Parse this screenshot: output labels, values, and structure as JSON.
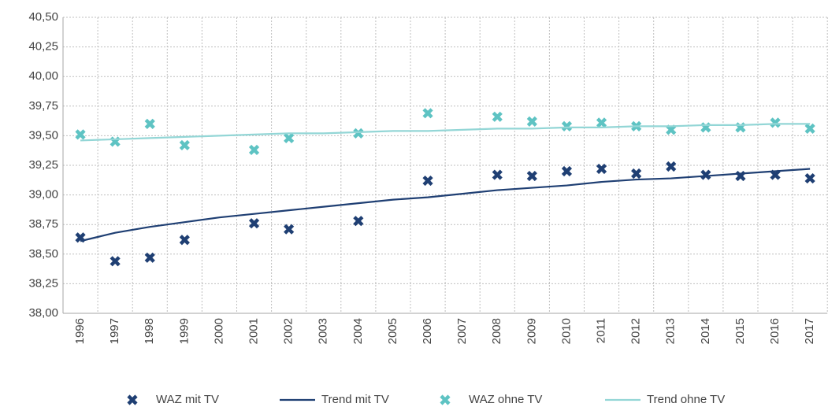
{
  "chart_data": {
    "type": "line",
    "categories": [
      "1996",
      "1997",
      "1998",
      "1999",
      "2000",
      "2001",
      "2002",
      "2003",
      "2004",
      "2005",
      "2006",
      "2007",
      "2008",
      "2009",
      "2010",
      "2011",
      "2012",
      "2013",
      "2014",
      "2015",
      "2016",
      "2017"
    ],
    "series": [
      {
        "name": "WAZ mit TV",
        "kind": "scatter",
        "color": "#1f3f73",
        "values": [
          38.64,
          38.44,
          38.47,
          38.62,
          null,
          38.76,
          38.71,
          null,
          38.78,
          null,
          39.12,
          null,
          39.17,
          39.16,
          39.2,
          39.22,
          39.18,
          39.24,
          39.17,
          39.16,
          39.17,
          39.14
        ]
      },
      {
        "name": "Trend mit TV",
        "kind": "line",
        "color": "#1f3f73",
        "values": [
          38.61,
          38.68,
          38.73,
          38.77,
          38.81,
          38.84,
          38.87,
          38.9,
          38.93,
          38.96,
          38.98,
          39.01,
          39.04,
          39.06,
          39.08,
          39.11,
          39.13,
          39.14,
          39.16,
          39.18,
          39.2,
          39.22
        ]
      },
      {
        "name": "WAZ ohne TV",
        "kind": "scatter",
        "color": "#5ec3c3",
        "values": [
          39.51,
          39.45,
          39.6,
          39.42,
          null,
          39.38,
          39.48,
          null,
          39.52,
          null,
          39.69,
          null,
          39.66,
          39.62,
          39.58,
          39.61,
          39.58,
          39.55,
          39.57,
          39.57,
          39.61,
          39.56
        ]
      },
      {
        "name": "Trend ohne TV",
        "kind": "line",
        "color": "#93d6d6",
        "values": [
          39.46,
          39.47,
          39.48,
          39.49,
          39.5,
          39.51,
          39.52,
          39.52,
          39.53,
          39.54,
          39.54,
          39.55,
          39.56,
          39.56,
          39.57,
          39.57,
          39.58,
          39.58,
          39.59,
          39.59,
          39.6,
          39.6
        ]
      }
    ],
    "ylim": [
      38.0,
      40.5
    ],
    "yticks": [
      {
        "value": 38.0,
        "label": "38,00"
      },
      {
        "value": 38.25,
        "label": "38,25"
      },
      {
        "value": 38.5,
        "label": "38,50"
      },
      {
        "value": 38.75,
        "label": "38,75"
      },
      {
        "value": 39.0,
        "label": "39,00"
      },
      {
        "value": 39.25,
        "label": "39,25"
      },
      {
        "value": 39.5,
        "label": "39,50"
      },
      {
        "value": 39.75,
        "label": "39,75"
      },
      {
        "value": 40.0,
        "label": "40,00"
      },
      {
        "value": 40.25,
        "label": "40,25"
      },
      {
        "value": 40.5,
        "label": "40,50"
      }
    ],
    "grid": true,
    "legend": "bottom"
  }
}
